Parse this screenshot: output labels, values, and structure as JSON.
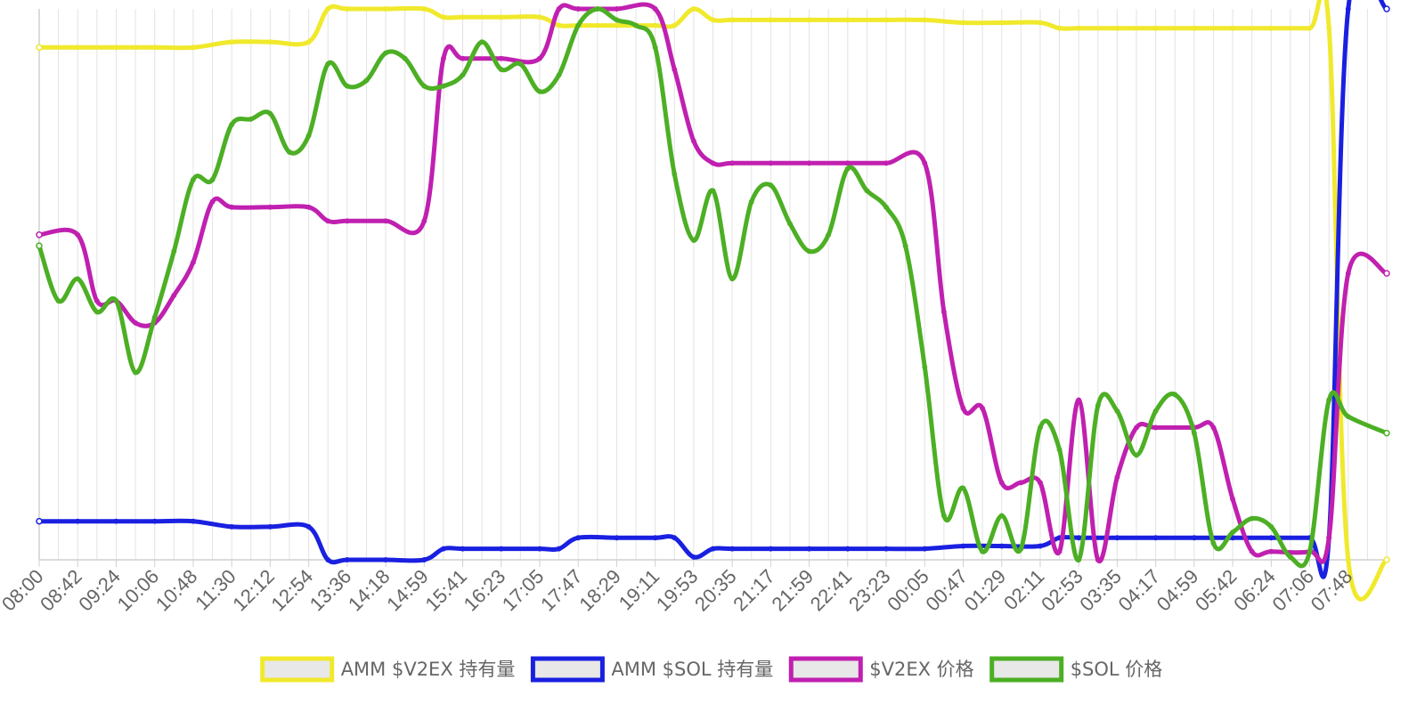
{
  "chart_data": {
    "type": "line",
    "x_ticks": [
      "08:00",
      "08:42",
      "09:24",
      "10:06",
      "10:48",
      "11:30",
      "12:12",
      "12:54",
      "13:36",
      "14:18",
      "14:59",
      "15:41",
      "16:23",
      "17:05",
      "17:47",
      "18:29",
      "19:11",
      "19:53",
      "20:35",
      "21:17",
      "21:59",
      "22:41",
      "23:23",
      "00:05",
      "00:47",
      "01:29",
      "02:11",
      "02:53",
      "03:35",
      "04:17",
      "04:59",
      "05:42",
      "06:24",
      "07:06",
      "07:48"
    ],
    "x_range": [
      0,
      35
    ],
    "y_axis_labels": "none",
    "y_range": [
      0,
      100
    ],
    "grid": "vertical",
    "legend": "bottom-center",
    "series": [
      {
        "name": "AMM $V2EX 持有量",
        "color": "#f0e92c",
        "points": [
          [
            0,
            93
          ],
          [
            1,
            93
          ],
          [
            2,
            93
          ],
          [
            3,
            93
          ],
          [
            4,
            93
          ],
          [
            5,
            94
          ],
          [
            6,
            94
          ],
          [
            7,
            94
          ],
          [
            7.5,
            100
          ],
          [
            8,
            100
          ],
          [
            9,
            100
          ],
          [
            10,
            100
          ],
          [
            10.5,
            98.5
          ],
          [
            11,
            98.5
          ],
          [
            12,
            98.5
          ],
          [
            13,
            98.5
          ],
          [
            13.5,
            97
          ],
          [
            14,
            97
          ],
          [
            15,
            97
          ],
          [
            16,
            97
          ],
          [
            16.5,
            97
          ],
          [
            17,
            100
          ],
          [
            17.5,
            98
          ],
          [
            18,
            98
          ],
          [
            19,
            98
          ],
          [
            20,
            98
          ],
          [
            21,
            98
          ],
          [
            22,
            98
          ],
          [
            23,
            98
          ],
          [
            24,
            97.5
          ],
          [
            25,
            97.5
          ],
          [
            26,
            97.5
          ],
          [
            26.5,
            96.5
          ],
          [
            27,
            96.5
          ],
          [
            28,
            96.5
          ],
          [
            29,
            96.5
          ],
          [
            30,
            96.5
          ],
          [
            31,
            96.5
          ],
          [
            32,
            96.5
          ],
          [
            33,
            96.5
          ],
          [
            33.5,
            96.5
          ],
          [
            34,
            0
          ],
          [
            35,
            0
          ]
        ]
      },
      {
        "name": "AMM $SOL 持有量",
        "color": "#1a20e0",
        "points": [
          [
            0,
            7
          ],
          [
            1,
            7
          ],
          [
            2,
            7
          ],
          [
            3,
            7
          ],
          [
            4,
            7
          ],
          [
            5,
            6
          ],
          [
            6,
            6
          ],
          [
            7,
            6
          ],
          [
            7.5,
            0
          ],
          [
            8,
            0
          ],
          [
            9,
            0
          ],
          [
            10,
            0
          ],
          [
            10.5,
            2
          ],
          [
            11,
            2
          ],
          [
            12,
            2
          ],
          [
            13,
            2
          ],
          [
            13.5,
            2
          ],
          [
            14,
            4
          ],
          [
            15,
            4
          ],
          [
            16,
            4
          ],
          [
            16.5,
            4
          ],
          [
            17,
            0.5
          ],
          [
            17.5,
            2
          ],
          [
            18,
            2
          ],
          [
            19,
            2
          ],
          [
            20,
            2
          ],
          [
            21,
            2
          ],
          [
            22,
            2
          ],
          [
            23,
            2
          ],
          [
            24,
            2.5
          ],
          [
            25,
            2.5
          ],
          [
            26,
            2.5
          ],
          [
            26.5,
            4
          ],
          [
            27,
            4
          ],
          [
            28,
            4
          ],
          [
            29,
            4
          ],
          [
            30,
            4
          ],
          [
            31,
            4
          ],
          [
            32,
            4
          ],
          [
            33,
            4
          ],
          [
            33.5,
            4
          ],
          [
            34,
            100
          ],
          [
            35,
            100
          ]
        ]
      },
      {
        "name": "$V2EX 价格",
        "color": "#c020b0",
        "points": [
          [
            0,
            59
          ],
          [
            1,
            59
          ],
          [
            1.5,
            47
          ],
          [
            2,
            47
          ],
          [
            2.5,
            43
          ],
          [
            3,
            43
          ],
          [
            3.5,
            48
          ],
          [
            4,
            54
          ],
          [
            4.5,
            65
          ],
          [
            5,
            64
          ],
          [
            6,
            64
          ],
          [
            7,
            64
          ],
          [
            7.5,
            61.5
          ],
          [
            8,
            61.5
          ],
          [
            9,
            61.5
          ],
          [
            10,
            61.5
          ],
          [
            10.5,
            91
          ],
          [
            11,
            91
          ],
          [
            12,
            91
          ],
          [
            13,
            91
          ],
          [
            13.5,
            100
          ],
          [
            14,
            100
          ],
          [
            15,
            100
          ],
          [
            16,
            100
          ],
          [
            16.5,
            89
          ],
          [
            17,
            76
          ],
          [
            17.5,
            72
          ],
          [
            18,
            72
          ],
          [
            19,
            72
          ],
          [
            20,
            72
          ],
          [
            21,
            72
          ],
          [
            22,
            72
          ],
          [
            23,
            72
          ],
          [
            23.5,
            45
          ],
          [
            24,
            27.5
          ],
          [
            24.5,
            27.5
          ],
          [
            25,
            14
          ],
          [
            25.5,
            14
          ],
          [
            26,
            14
          ],
          [
            26.5,
            1.5
          ],
          [
            27,
            29
          ],
          [
            27.5,
            0
          ],
          [
            28,
            15
          ],
          [
            28.5,
            24
          ],
          [
            29,
            24
          ],
          [
            30,
            24
          ],
          [
            30.5,
            24
          ],
          [
            31,
            11
          ],
          [
            31.5,
            1.5
          ],
          [
            32,
            1.5
          ],
          [
            33,
            1.5
          ],
          [
            33.5,
            4
          ],
          [
            34,
            52
          ],
          [
            35,
            52
          ]
        ]
      },
      {
        "name": "$SOL 价格",
        "color": "#4caf24",
        "points": [
          [
            0,
            57
          ],
          [
            0.5,
            47
          ],
          [
            1,
            51
          ],
          [
            1.5,
            45
          ],
          [
            2,
            47
          ],
          [
            2.5,
            34
          ],
          [
            3,
            44
          ],
          [
            3.5,
            56
          ],
          [
            4,
            69
          ],
          [
            4.5,
            69
          ],
          [
            5,
            79
          ],
          [
            5.5,
            80
          ],
          [
            6,
            81
          ],
          [
            6.5,
            74
          ],
          [
            7,
            77
          ],
          [
            7.5,
            90
          ],
          [
            8,
            86
          ],
          [
            8.5,
            87
          ],
          [
            9,
            92
          ],
          [
            9.5,
            91
          ],
          [
            10,
            86
          ],
          [
            10.5,
            86
          ],
          [
            11,
            88
          ],
          [
            11.5,
            94
          ],
          [
            12,
            89
          ],
          [
            12.5,
            90
          ],
          [
            13,
            85
          ],
          [
            13.5,
            88
          ],
          [
            14,
            97
          ],
          [
            14.5,
            100
          ],
          [
            15,
            98
          ],
          [
            15.5,
            97
          ],
          [
            16,
            93
          ],
          [
            16.5,
            70
          ],
          [
            17,
            58
          ],
          [
            17.5,
            67
          ],
          [
            18,
            51
          ],
          [
            18.5,
            65
          ],
          [
            19,
            68
          ],
          [
            19.5,
            61
          ],
          [
            20,
            56
          ],
          [
            20.5,
            59
          ],
          [
            21,
            71
          ],
          [
            21.5,
            67
          ],
          [
            22,
            64
          ],
          [
            22.5,
            57
          ],
          [
            23,
            35
          ],
          [
            23.5,
            8
          ],
          [
            24,
            13
          ],
          [
            24.5,
            1.5
          ],
          [
            25,
            8
          ],
          [
            25.5,
            2
          ],
          [
            26,
            24
          ],
          [
            26.5,
            20
          ],
          [
            27,
            0
          ],
          [
            27.5,
            28
          ],
          [
            28,
            27
          ],
          [
            28.5,
            19
          ],
          [
            29,
            27
          ],
          [
            29.5,
            30
          ],
          [
            30,
            23
          ],
          [
            30.5,
            3
          ],
          [
            31,
            5
          ],
          [
            31.5,
            7.5
          ],
          [
            32,
            6
          ],
          [
            32.5,
            0.5
          ],
          [
            33,
            1.5
          ],
          [
            33.5,
            29
          ],
          [
            34,
            26
          ],
          [
            35,
            23
          ]
        ]
      }
    ]
  }
}
